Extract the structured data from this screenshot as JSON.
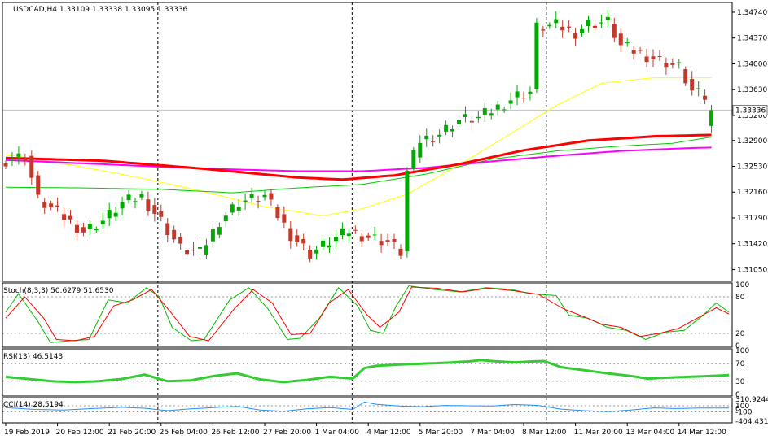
{
  "colors": {
    "background": "#ffffff",
    "frame": "#000000",
    "bull_candle": "#00aa00",
    "bear_candle": "#c0392b",
    "ma_red": "#ff0000",
    "ma_magenta": "#ff00ff",
    "ma_green": "#00cc00",
    "ma_yellow": "#ffff00",
    "stoch_main": "#00bb00",
    "stoch_signal": "#ff0000",
    "rsi": "#33cc33",
    "cci": "#1e90ff",
    "current_price_line": "#c0c0c0"
  },
  "chart_data": {
    "type": "candlestick",
    "title": "USDCAD,H4  1.33109 1.33338 1.33095 1.33336",
    "current_price": 1.33336,
    "current_price_label": "1.33336",
    "ylim": [
      1.3088,
      1.3488
    ],
    "y_ticks": [
      1.3474,
      1.3437,
      1.34,
      1.3363,
      1.3326,
      1.329,
      1.3253,
      1.3216,
      1.3179,
      1.3142,
      1.3105
    ],
    "y_tick_labels": [
      "1.34740",
      "1.34370",
      "1.34000",
      "1.33630",
      "1.33260",
      "1.32900",
      "1.32530",
      "1.32160",
      "1.31790",
      "1.31420",
      "1.31050"
    ],
    "x_labels": [
      "19 Feb 2019",
      "20 Feb 12:00",
      "21 Feb 20:00",
      "25 Feb 04:00",
      "26 Feb 12:00",
      "27 Feb 20:00",
      "1 Mar 04:00",
      "4 Mar 12:00",
      "5 Mar 20:00",
      "7 Mar 04:00",
      "8 Mar 12:00",
      "11 Mar 20:00",
      "13 Mar 04:00",
      "14 Mar 12:00"
    ],
    "x_label_bars": [
      0,
      8,
      16,
      24,
      32,
      40,
      48,
      56,
      64,
      72,
      80,
      88,
      96,
      104
    ],
    "period_separator_bars": [
      23.5,
      53.5,
      83.5
    ],
    "bars_count": 110,
    "moving_average_anchors": {
      "red_ma": [
        [
          0,
          1.3265
        ],
        [
          15,
          1.3261
        ],
        [
          30,
          1.325
        ],
        [
          45,
          1.3237
        ],
        [
          52,
          1.3234
        ],
        [
          60,
          1.324
        ],
        [
          70,
          1.3256
        ],
        [
          80,
          1.3276
        ],
        [
          90,
          1.329
        ],
        [
          100,
          1.3296
        ],
        [
          109,
          1.3298
        ]
      ],
      "magenta_ma": [
        [
          0,
          1.3262
        ],
        [
          15,
          1.3256
        ],
        [
          30,
          1.325
        ],
        [
          45,
          1.3246
        ],
        [
          55,
          1.3246
        ],
        [
          65,
          1.3251
        ],
        [
          75,
          1.326
        ],
        [
          85,
          1.3268
        ],
        [
          95,
          1.3275
        ],
        [
          105,
          1.3279
        ],
        [
          109,
          1.328
        ]
      ],
      "green_ma": [
        [
          0,
          1.3223
        ],
        [
          12,
          1.3222
        ],
        [
          24,
          1.322
        ],
        [
          35,
          1.3215
        ],
        [
          45,
          1.3222
        ],
        [
          55,
          1.3227
        ],
        [
          65,
          1.3242
        ],
        [
          75,
          1.3263
        ],
        [
          85,
          1.3275
        ],
        [
          95,
          1.3282
        ],
        [
          103,
          1.3286
        ],
        [
          109,
          1.3295
        ]
      ],
      "yellow_ma": [
        [
          0,
          1.327
        ],
        [
          10,
          1.3255
        ],
        [
          20,
          1.3238
        ],
        [
          30,
          1.3218
        ],
        [
          40,
          1.3195
        ],
        [
          49,
          1.3182
        ],
        [
          55,
          1.3192
        ],
        [
          62,
          1.3213
        ],
        [
          70,
          1.3255
        ],
        [
          78,
          1.33
        ],
        [
          85,
          1.334
        ],
        [
          92,
          1.3372
        ],
        [
          100,
          1.338
        ],
        [
          109,
          1.338
        ]
      ]
    },
    "price_anchors": [
      [
        0,
        1.3262
      ],
      [
        3,
        1.3268
      ],
      [
        5,
        1.3205
      ],
      [
        9,
        1.318
      ],
      [
        12,
        1.316
      ],
      [
        15,
        1.3175
      ],
      [
        18,
        1.32
      ],
      [
        21,
        1.321
      ],
      [
        24,
        1.3175
      ],
      [
        27,
        1.3135
      ],
      [
        30,
        1.3128
      ],
      [
        33,
        1.3175
      ],
      [
        36,
        1.3202
      ],
      [
        40,
        1.321
      ],
      [
        44,
        1.3155
      ],
      [
        47,
        1.3128
      ],
      [
        50,
        1.3145
      ],
      [
        53,
        1.316
      ],
      [
        56,
        1.3152
      ],
      [
        59,
        1.3145
      ],
      [
        61,
        1.313
      ],
      [
        62,
        1.3245
      ],
      [
        64,
        1.329
      ],
      [
        67,
        1.33
      ],
      [
        70,
        1.332
      ],
      [
        73,
        1.3322
      ],
      [
        76,
        1.3338
      ],
      [
        79,
        1.3355
      ],
      [
        81,
        1.336
      ],
      [
        82,
        1.3452
      ],
      [
        85,
        1.3455
      ],
      [
        88,
        1.3445
      ],
      [
        90,
        1.3458
      ],
      [
        93,
        1.346
      ],
      [
        95,
        1.3425
      ],
      [
        98,
        1.3415
      ],
      [
        101,
        1.3405
      ],
      [
        104,
        1.3395
      ],
      [
        106,
        1.336
      ],
      [
        108,
        1.3352
      ],
      [
        109,
        1.3334
      ]
    ]
  },
  "stoch": {
    "label": "Stoch(8,3,3) 50.6279 51.6530",
    "levels": [
      100,
      80,
      20,
      0
    ],
    "level_labels": [
      "100",
      "80",
      "20",
      "0"
    ],
    "ylim": [
      0,
      100
    ],
    "main_anchors": [
      [
        0,
        55
      ],
      [
        2,
        85
      ],
      [
        5,
        40
      ],
      [
        7,
        5
      ],
      [
        10,
        8
      ],
      [
        13,
        10
      ],
      [
        16,
        75
      ],
      [
        19,
        70
      ],
      [
        22,
        95
      ],
      [
        24,
        80
      ],
      [
        26,
        30
      ],
      [
        29,
        8
      ],
      [
        31,
        10
      ],
      [
        35,
        75
      ],
      [
        38,
        95
      ],
      [
        41,
        60
      ],
      [
        44,
        10
      ],
      [
        46,
        12
      ],
      [
        49,
        45
      ],
      [
        52,
        95
      ],
      [
        55,
        65
      ],
      [
        57,
        25
      ],
      [
        59,
        20
      ],
      [
        61,
        65
      ],
      [
        63,
        98
      ],
      [
        67,
        92
      ],
      [
        71,
        88
      ],
      [
        75,
        95
      ],
      [
        79,
        92
      ],
      [
        82,
        85
      ],
      [
        86,
        82
      ],
      [
        88,
        50
      ],
      [
        91,
        45
      ],
      [
        94,
        30
      ],
      [
        97,
        25
      ],
      [
        100,
        10
      ],
      [
        103,
        22
      ],
      [
        106,
        25
      ],
      [
        109,
        50
      ],
      [
        111,
        70
      ],
      [
        113,
        55
      ]
    ],
    "signal_anchors": [
      [
        0,
        45
      ],
      [
        3,
        80
      ],
      [
        6,
        45
      ],
      [
        8,
        10
      ],
      [
        11,
        8
      ],
      [
        14,
        15
      ],
      [
        17,
        65
      ],
      [
        20,
        75
      ],
      [
        23,
        92
      ],
      [
        26,
        55
      ],
      [
        29,
        15
      ],
      [
        32,
        8
      ],
      [
        36,
        60
      ],
      [
        39,
        92
      ],
      [
        42,
        70
      ],
      [
        45,
        18
      ],
      [
        48,
        20
      ],
      [
        51,
        70
      ],
      [
        54,
        92
      ],
      [
        57,
        50
      ],
      [
        59,
        30
      ],
      [
        62,
        55
      ],
      [
        64,
        96
      ],
      [
        68,
        94
      ],
      [
        72,
        88
      ],
      [
        76,
        94
      ],
      [
        80,
        90
      ],
      [
        84,
        84
      ],
      [
        88,
        60
      ],
      [
        91,
        48
      ],
      [
        94,
        35
      ],
      [
        97,
        30
      ],
      [
        100,
        15
      ],
      [
        103,
        20
      ],
      [
        106,
        28
      ],
      [
        109,
        45
      ],
      [
        112,
        62
      ],
      [
        114,
        52
      ]
    ]
  },
  "rsi": {
    "label": "RSI(13) 46.5143",
    "levels": [
      100,
      70,
      30,
      0
    ],
    "level_labels": [
      "100",
      "70",
      "30",
      "0"
    ],
    "ylim": [
      0,
      100
    ],
    "anchors": [
      [
        0,
        40
      ],
      [
        4,
        35
      ],
      [
        8,
        30
      ],
      [
        12,
        28
      ],
      [
        16,
        30
      ],
      [
        20,
        35
      ],
      [
        24,
        45
      ],
      [
        28,
        30
      ],
      [
        32,
        32
      ],
      [
        36,
        42
      ],
      [
        40,
        48
      ],
      [
        44,
        34
      ],
      [
        48,
        28
      ],
      [
        52,
        33
      ],
      [
        56,
        40
      ],
      [
        60,
        36
      ],
      [
        62,
        60
      ],
      [
        64,
        65
      ],
      [
        68,
        68
      ],
      [
        72,
        70
      ],
      [
        76,
        72
      ],
      [
        80,
        75
      ],
      [
        82,
        78
      ],
      [
        85,
        75
      ],
      [
        88,
        73
      ],
      [
        91,
        75
      ],
      [
        93,
        76
      ],
      [
        96,
        62
      ],
      [
        100,
        55
      ],
      [
        104,
        48
      ],
      [
        108,
        42
      ],
      [
        111,
        36
      ],
      [
        114,
        38
      ],
      [
        118,
        40
      ],
      [
        122,
        42
      ],
      [
        125,
        44
      ]
    ]
  },
  "cci": {
    "label": "CCI(14) 28.5194",
    "level_labels": [
      "310.9244",
      "100",
      "0",
      "-100",
      "-404.4318"
    ],
    "levels": [
      310.9244,
      100,
      0,
      -100,
      -404.4318
    ],
    "ylim": [
      -404.4318,
      310.9244
    ],
    "anchors": [
      [
        0,
        40
      ],
      [
        5,
        -20
      ],
      [
        10,
        -40
      ],
      [
        15,
        10
      ],
      [
        20,
        50
      ],
      [
        24,
        20
      ],
      [
        28,
        -60
      ],
      [
        32,
        0
      ],
      [
        36,
        40
      ],
      [
        40,
        80
      ],
      [
        44,
        -40
      ],
      [
        48,
        -80
      ],
      [
        52,
        0
      ],
      [
        56,
        40
      ],
      [
        60,
        -20
      ],
      [
        62,
        220
      ],
      [
        64,
        150
      ],
      [
        68,
        90
      ],
      [
        72,
        70
      ],
      [
        76,
        110
      ],
      [
        80,
        100
      ],
      [
        84,
        90
      ],
      [
        88,
        140
      ],
      [
        92,
        110
      ],
      [
        96,
        -10
      ],
      [
        100,
        -60
      ],
      [
        104,
        -90
      ],
      [
        108,
        -40
      ],
      [
        112,
        30
      ],
      [
        116,
        10
      ],
      [
        120,
        25
      ],
      [
        125,
        28
      ]
    ]
  }
}
